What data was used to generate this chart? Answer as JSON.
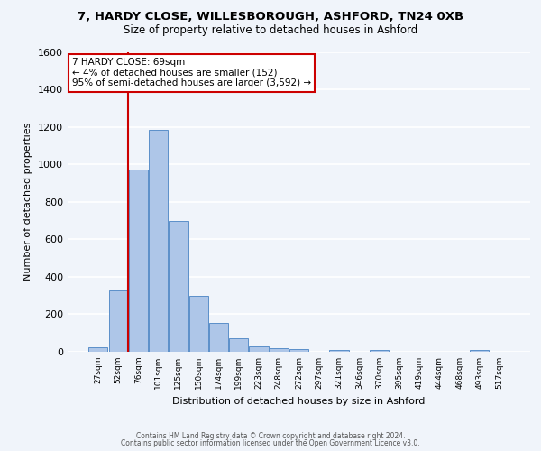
{
  "title_line1": "7, HARDY CLOSE, WILLESBOROUGH, ASHFORD, TN24 0XB",
  "title_line2": "Size of property relative to detached houses in Ashford",
  "xlabel": "Distribution of detached houses by size in Ashford",
  "ylabel": "Number of detached properties",
  "footer_line1": "Contains HM Land Registry data © Crown copyright and database right 2024.",
  "footer_line2": "Contains public sector information licensed under the Open Government Licence v3.0.",
  "bar_labels": [
    "27sqm",
    "52sqm",
    "76sqm",
    "101sqm",
    "125sqm",
    "150sqm",
    "174sqm",
    "199sqm",
    "223sqm",
    "248sqm",
    "272sqm",
    "297sqm",
    "321sqm",
    "346sqm",
    "370sqm",
    "395sqm",
    "419sqm",
    "444sqm",
    "468sqm",
    "493sqm",
    "517sqm"
  ],
  "bar_values": [
    25,
    325,
    970,
    1185,
    700,
    300,
    155,
    70,
    30,
    20,
    15,
    0,
    12,
    0,
    10,
    0,
    0,
    0,
    0,
    10,
    0
  ],
  "bar_color": "#aec6e8",
  "bar_edge_color": "#5b8fc9",
  "background_color": "#f0f4fa",
  "grid_color": "#ffffff",
  "property_line_color": "#cc0000",
  "annotation_line1": "7 HARDY CLOSE: 69sqm",
  "annotation_line2": "← 4% of detached houses are smaller (152)",
  "annotation_line3": "95% of semi-detached houses are larger (3,592) →",
  "annotation_box_color": "#ffffff",
  "annotation_box_edge": "#cc0000",
  "ylim": [
    0,
    1600
  ],
  "yticks": [
    0,
    200,
    400,
    600,
    800,
    1000,
    1200,
    1400,
    1600
  ]
}
